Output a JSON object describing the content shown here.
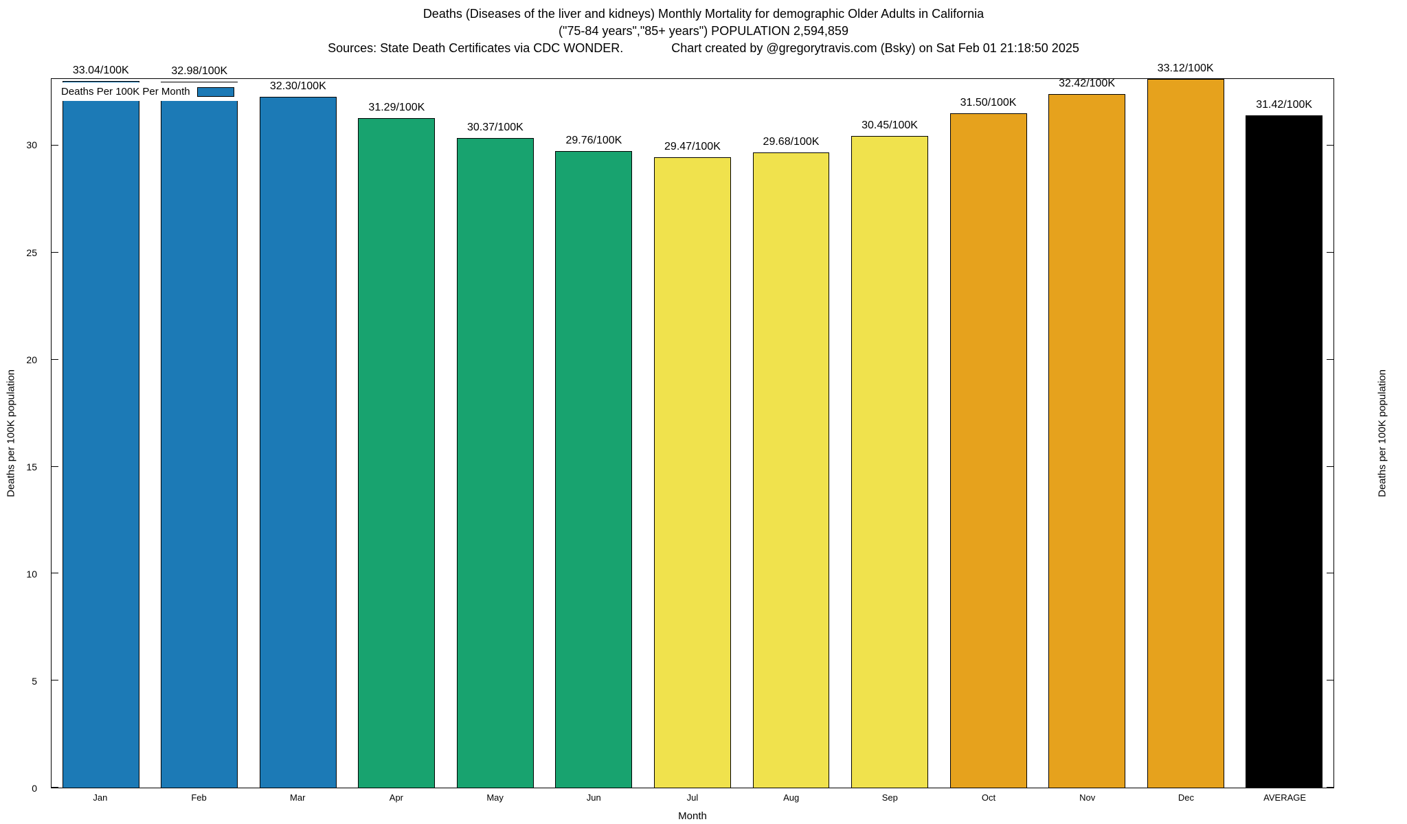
{
  "header": {
    "line1": "Deaths (Diseases of the liver and kidneys) Monthly Mortality for demographic Older Adults in California",
    "line2": "(\"75-84 years\",\"85+ years\") POPULATION 2,594,859",
    "sources": "Sources: State Death Certificates via CDC WONDER.",
    "credit": "Chart created by @gregorytravis.com (Bsky) on Sat Feb 01 21:18:50 2025"
  },
  "legend": {
    "label": "Deaths Per 100K Per Month",
    "swatch_color": "#1c7ab6"
  },
  "chart_data": {
    "type": "bar",
    "title": "Deaths (Diseases of the liver and kidneys) Monthly Mortality for demographic Older Adults in California",
    "subtitle": "(\"75-84 years\",\"85+ years\") POPULATION 2,594,859",
    "categories": [
      "Jan",
      "Feb",
      "Mar",
      "Apr",
      "May",
      "Jun",
      "Jul",
      "Aug",
      "Sep",
      "Oct",
      "Nov",
      "Dec",
      "AVERAGE"
    ],
    "values": [
      33.04,
      32.98,
      32.3,
      31.29,
      30.37,
      29.76,
      29.47,
      29.68,
      30.45,
      31.5,
      32.42,
      33.12,
      31.42
    ],
    "bar_labels": [
      "33.04/100K",
      "32.98/100K",
      "32.30/100K",
      "31.29/100K",
      "30.37/100K",
      "29.76/100K",
      "29.47/100K",
      "29.68/100K",
      "30.45/100K",
      "31.50/100K",
      "32.42/100K",
      "33.12/100K",
      "31.42/100K"
    ],
    "bar_colors": [
      "#1c7ab6",
      "#1c7ab6",
      "#1c7ab6",
      "#18a36f",
      "#18a36f",
      "#18a36f",
      "#f0e24d",
      "#f0e24d",
      "#f0e24d",
      "#e6a21d",
      "#e6a21d",
      "#e6a21d",
      "#000000"
    ],
    "xlabel": "Month",
    "ylabel": "Deaths per 100K population",
    "ylabel_right": "Deaths per 100K population",
    "ylim": [
      0,
      33.12
    ],
    "yticks": [
      0,
      5,
      10,
      15,
      20,
      25,
      30
    ],
    "grid": "off",
    "legend_position": "top-left"
  }
}
